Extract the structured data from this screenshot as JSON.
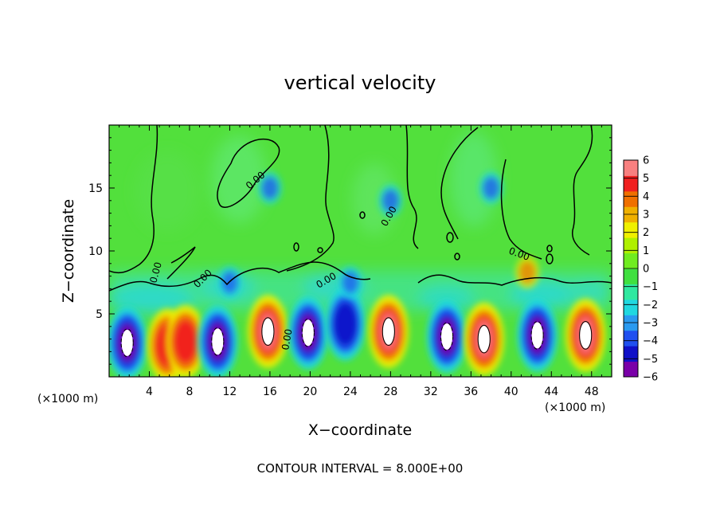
{
  "chart_data": {
    "type": "heatmap",
    "title": "vertical velocity",
    "xlabel": "X−coordinate",
    "ylabel": "Z−coordinate",
    "x_unit_left": "(×1000 m)",
    "x_unit_right": "(×1000 m)",
    "footer": "CONTOUR INTERVAL = 8.000E+00",
    "contour_label": "0.00",
    "xlim": [
      0,
      50
    ],
    "ylim": [
      0,
      20
    ],
    "x_ticks": [
      "4",
      "8",
      "12",
      "16",
      "20",
      "24",
      "28",
      "32",
      "36",
      "40",
      "44",
      "48"
    ],
    "y_ticks": [
      "5",
      "10",
      "15"
    ],
    "colorbar_ticks": [
      "6",
      "5",
      "4",
      "3",
      "2",
      "1",
      "0",
      "−1",
      "−2",
      "−3",
      "−4",
      "−5",
      "−6"
    ],
    "colorbar_range": [
      -6,
      6
    ],
    "colors": [
      "#7a00a8",
      "#1010c8",
      "#2050f0",
      "#2a9af0",
      "#20d8e0",
      "#30e8a0",
      "#40e040",
      "#70ec20",
      "#b0f000",
      "#f0f000",
      "#f0b000",
      "#f07000",
      "#f02020",
      "#f88080"
    ],
    "cells": [
      {
        "x": 1.8,
        "z": 2.7,
        "w": -12
      },
      {
        "x": 5.8,
        "z": 2.5,
        "w": 5
      },
      {
        "x": 7.6,
        "z": 2.8,
        "w": 5
      },
      {
        "x": 10.8,
        "z": 2.8,
        "w": -12
      },
      {
        "x": 15.8,
        "z": 3.6,
        "w": 14
      },
      {
        "x": 19.8,
        "z": 3.5,
        "w": -9
      },
      {
        "x": 23.5,
        "z": 4.2,
        "w": -7
      },
      {
        "x": 27.8,
        "z": 3.6,
        "w": 14
      },
      {
        "x": 33.6,
        "z": 3.2,
        "w": -10
      },
      {
        "x": 37.3,
        "z": 3.0,
        "w": 13
      },
      {
        "x": 42.6,
        "z": 3.3,
        "w": -11
      },
      {
        "x": 47.4,
        "z": 3.3,
        "w": 13
      },
      {
        "x": 16.0,
        "z": 15.0,
        "w": -1.5
      },
      {
        "x": 38.0,
        "z": 15.0,
        "w": -1.2
      },
      {
        "x": 28.0,
        "z": 14.0,
        "w": -0.8
      },
      {
        "x": 12.0,
        "z": 7.5,
        "w": -1.8
      },
      {
        "x": 24.0,
        "z": 7.5,
        "w": -1.6
      },
      {
        "x": 41.6,
        "z": 8.3,
        "w": 3
      }
    ]
  }
}
